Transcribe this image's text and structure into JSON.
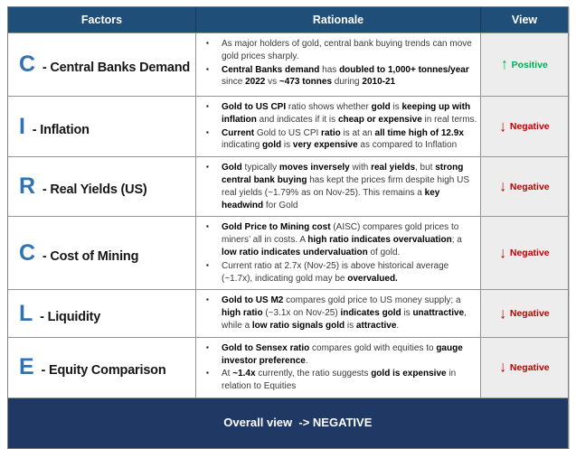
{
  "colors": {
    "header_bg": "#1F4E79",
    "footer_bg": "#1F3864",
    "letter_blue": "#2E74B5",
    "view_bg": "#EDEDED",
    "positive": "#00B050",
    "negative": "#C00000"
  },
  "table": {
    "headers": {
      "factors": "Factors",
      "rationale": "Rationale",
      "view": "View"
    },
    "bullet_glyph": "▪",
    "rows": [
      {
        "letter": "C",
        "label": "- Central Banks Demand",
        "bullets": [
          [
            {
              "t": "As major holders of gold, central bank buying trends can move gold prices sharply."
            }
          ],
          [
            {
              "t": "Central Banks demand",
              "b": true
            },
            {
              "t": " has "
            },
            {
              "t": "doubled to 1,000+ tonnes/year",
              "b": true
            },
            {
              "t": " since "
            },
            {
              "t": "2022",
              "b": true
            },
            {
              "t": " vs "
            },
            {
              "t": "~473 tonnes",
              "b": true
            },
            {
              "t": " during "
            },
            {
              "t": "2010-21",
              "b": true
            }
          ]
        ],
        "view": {
          "direction": "up",
          "label": "Positive",
          "color": "#00B050"
        }
      },
      {
        "letter": "I",
        "label": "- Inflation",
        "bullets": [
          [
            {
              "t": "Gold to US CPI",
              "b": true
            },
            {
              "t": " ratio shows whether "
            },
            {
              "t": "gold",
              "b": true
            },
            {
              "t": " is "
            },
            {
              "t": "keeping up with inflation",
              "b": true
            },
            {
              "t": " and indicates if it is "
            },
            {
              "t": "cheap or expensive",
              "b": true
            },
            {
              "t": " in real terms."
            }
          ],
          [
            {
              "t": "Current",
              "b": true
            },
            {
              "t": " Gold to US CPI "
            },
            {
              "t": "ratio",
              "b": true
            },
            {
              "t": " is at an "
            },
            {
              "t": "all time high of 12.9x",
              "b": true
            },
            {
              "t": " indicating "
            },
            {
              "t": "gold",
              "b": true
            },
            {
              "t": " is "
            },
            {
              "t": "very expensive",
              "b": true
            },
            {
              "t": " as compared to Inflation"
            }
          ]
        ],
        "view": {
          "direction": "down",
          "label": "Negative",
          "color": "#C00000"
        }
      },
      {
        "letter": "R",
        "label": "- Real Yields (US)",
        "bullets": [
          [
            {
              "t": "Gold",
              "b": true
            },
            {
              "t": " typically "
            },
            {
              "t": "moves inversely",
              "b": true
            },
            {
              "t": " with "
            },
            {
              "t": "real yields",
              "b": true
            },
            {
              "t": ", but "
            },
            {
              "t": "strong central bank buying",
              "b": true
            },
            {
              "t": " has kept the prices firm despite high US real yields (~1.79% as on Nov-25). This remains a "
            },
            {
              "t": "key headwind",
              "b": true
            },
            {
              "t": " for Gold"
            }
          ]
        ],
        "view": {
          "direction": "down",
          "label": "Negative",
          "color": "#C00000"
        }
      },
      {
        "letter": "C",
        "label": "- Cost of Mining",
        "bullets": [
          [
            {
              "t": "Gold Price to Mining cost",
              "b": true
            },
            {
              "t": " (AISC) compares gold prices to miners’ all in costs. A "
            },
            {
              "t": "high ratio indicates overvaluation",
              "b": true
            },
            {
              "t": "; a "
            },
            {
              "t": "low ratio indicates undervaluation",
              "b": true
            },
            {
              "t": " of gold."
            }
          ],
          [
            {
              "t": "Current ratio at 2.7x (Nov-25) is above historical average (~1.7x), indicating gold may be "
            },
            {
              "t": "overvalued.",
              "b": true
            }
          ]
        ],
        "view": {
          "direction": "down",
          "label": "Negative",
          "color": "#C00000"
        }
      },
      {
        "letter": "L",
        "label": "- Liquidity",
        "bullets": [
          [
            {
              "t": "Gold to US M2",
              "b": true
            },
            {
              "t": " compares gold price to US money supply; a "
            },
            {
              "t": "high ratio",
              "b": true
            },
            {
              "t": " (~3.1x on Nov-25) "
            },
            {
              "t": "indicates gold",
              "b": true
            },
            {
              "t": " is "
            },
            {
              "t": "unattractive",
              "b": true
            },
            {
              "t": ", while a "
            },
            {
              "t": "low ratio signals gold",
              "b": true
            },
            {
              "t": " is "
            },
            {
              "t": "attractive",
              "b": true
            },
            {
              "t": "."
            }
          ]
        ],
        "view": {
          "direction": "down",
          "label": "Negative",
          "color": "#C00000"
        }
      },
      {
        "letter": "E",
        "label": "- Equity Comparison",
        "bullets": [
          [
            {
              "t": "Gold to Sensex ratio",
              "b": true
            },
            {
              "t": " compares gold with equities to "
            },
            {
              "t": "gauge investor preference",
              "b": true
            },
            {
              "t": "."
            }
          ],
          [
            {
              "t": "At "
            },
            {
              "t": "~1.4x",
              "b": true
            },
            {
              "t": " currently, the ratio suggests "
            },
            {
              "t": "gold is expensive",
              "b": true
            },
            {
              "t": " in relation to Equities"
            }
          ]
        ],
        "view": {
          "direction": "down",
          "label": "Negative",
          "color": "#C00000"
        }
      }
    ],
    "footer": "Overall view  -> NEGATIVE"
  }
}
